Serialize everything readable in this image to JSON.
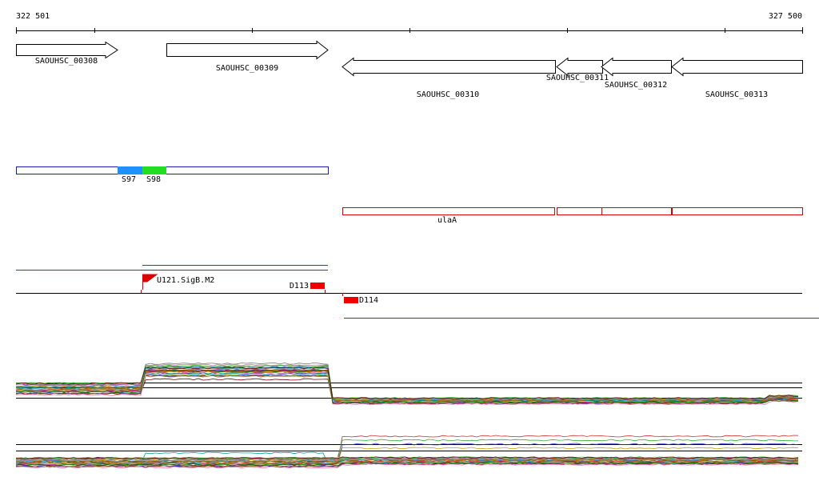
{
  "ruler": {
    "start_label": "322 501",
    "end_label": "327 500"
  },
  "genes": [
    {
      "label": "SAOUHSC_00308"
    },
    {
      "label": "SAOUHSC_00309"
    },
    {
      "label": "SAOUHSC_00310"
    },
    {
      "label": "SAOUHSC_00311"
    },
    {
      "label": "SAOUHSC_00312"
    },
    {
      "label": "SAOUHSC_00313"
    }
  ],
  "segments": [
    {
      "label": "S97"
    },
    {
      "label": "S98"
    }
  ],
  "operon": {
    "label": "ulaA"
  },
  "features": [
    {
      "label": "U121.SigB.M2"
    },
    {
      "label": "D113"
    },
    {
      "label": "D114"
    }
  ]
}
